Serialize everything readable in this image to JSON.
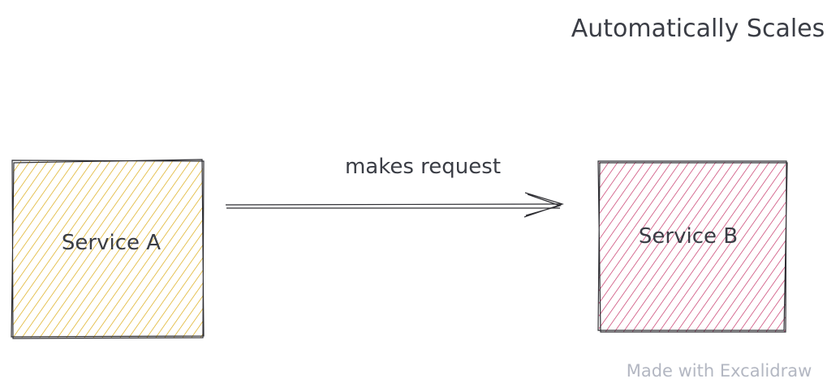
{
  "diagram": {
    "heading": "Automatically Scales",
    "nodes": [
      {
        "id": "service-a",
        "label": "Service A",
        "fill_color": "#d9a400",
        "stroke_color": "#2e2e33"
      },
      {
        "id": "service-b",
        "label": "Service B",
        "fill_color": "#c2255c",
        "stroke_color": "#2e2e33"
      }
    ],
    "edges": [
      {
        "from": "service-a",
        "to": "service-b",
        "label": "makes request"
      }
    ],
    "watermark": "Made with Excalidraw",
    "text_color": "#3a3d45",
    "watermark_color": "#b3b7c2"
  }
}
